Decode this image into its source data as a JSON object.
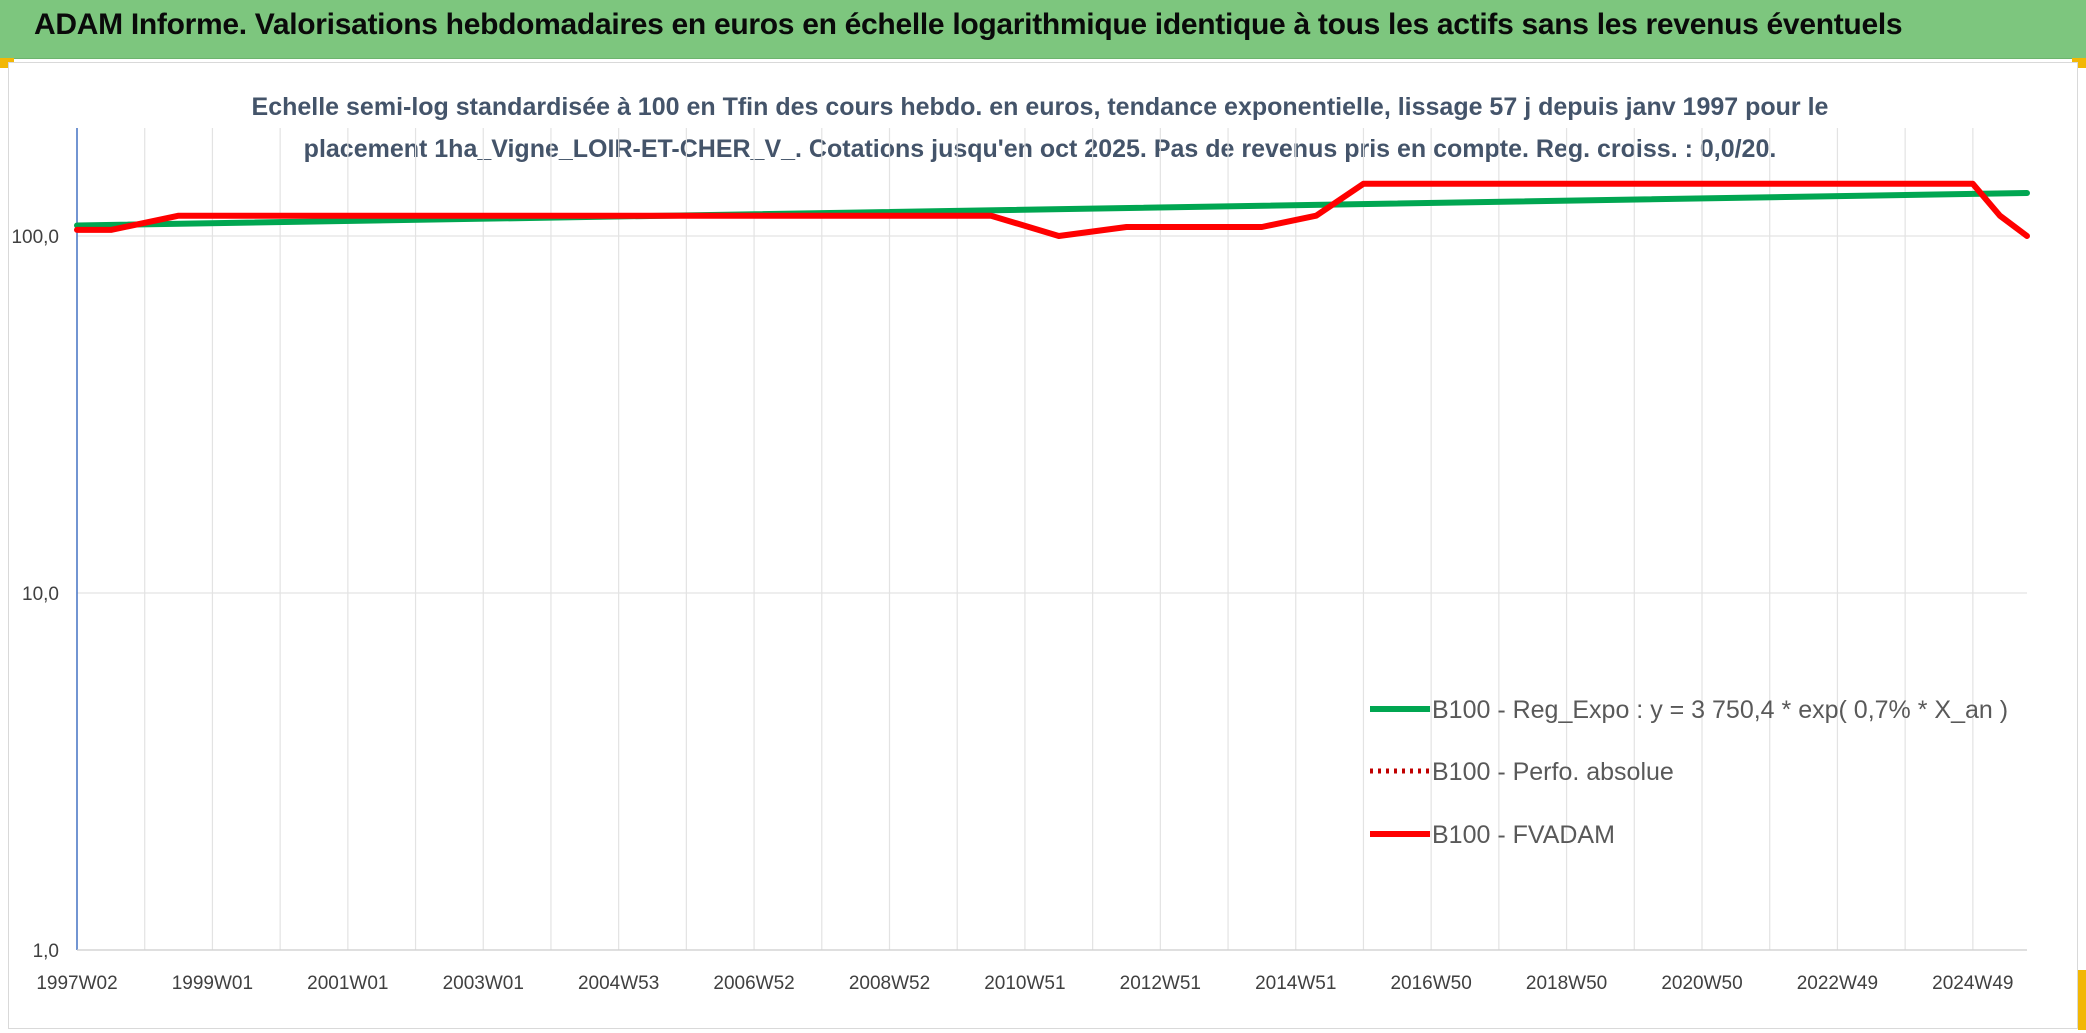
{
  "header": {
    "title": "ADAM Informe. Valorisations hebdomadaires en euros en échelle logarithmique identique à tous les actifs sans les revenus éventuels"
  },
  "colors": {
    "header_bg": "#7dc67e",
    "corner_accent": "#f2b705",
    "trend": "#00a651",
    "fvadam": "#ff0000",
    "perf": "#c00000"
  },
  "chart_data": {
    "type": "line",
    "title": "Echelle semi-log standardisée à 100 en Tfin des cours hebdo. en euros, tendance exponentielle, lissage 57 j depuis janv 1997 pour le placement 1ha_Vigne_LOIR-ET-CHER_V_. Cotations jusqu'en oct 2025. Pas de revenus pris en compte. Reg. croiss. : 0,0/20.",
    "xlabel": "",
    "ylabel": "",
    "y_scale": "log",
    "ylim": [
      1,
      200
    ],
    "y_ticks": [
      "1,0",
      "10,0",
      "100,0"
    ],
    "y_tick_values": [
      1,
      10,
      100
    ],
    "x_range": [
      1997.0,
      2025.8
    ],
    "x_tick_labels": [
      "1997W02",
      "1999W01",
      "2001W01",
      "2003W01",
      "2004W53",
      "2006W52",
      "2008W52",
      "2010W51",
      "2012W51",
      "2014W51",
      "2016W50",
      "2018W50",
      "2020W50",
      "2022W49",
      "2024W49"
    ],
    "x_tick_years": [
      1997.0,
      1999.0,
      2001.0,
      2003.0,
      2005.0,
      2007.0,
      2009.0,
      2011.0,
      2013.0,
      2015.0,
      2017.0,
      2019.0,
      2021.0,
      2023.0,
      2025.0
    ],
    "grid": true,
    "legend_position": "bottom-right",
    "series": [
      {
        "name": "B100 - Reg_Expo : y = 3 750,4 * exp( 0,7% *  X_an )",
        "style": "solid-green",
        "x": [
          1997.0,
          2025.8
        ],
        "values": [
          107,
          132
        ]
      },
      {
        "name": "B100 - Perfo. absolue",
        "style": "dotted-red",
        "x": [],
        "values": []
      },
      {
        "name": "B100 - FVADAM",
        "style": "solid-red",
        "x": [
          1997.0,
          1997.5,
          1998.5,
          2010.5,
          2011.5,
          2012.5,
          2014.5,
          2015.3,
          2016.0,
          2025.0,
          2025.4,
          2025.8
        ],
        "values": [
          104,
          104,
          114,
          114,
          100,
          106,
          106,
          114,
          140,
          140,
          114,
          100
        ]
      }
    ]
  }
}
